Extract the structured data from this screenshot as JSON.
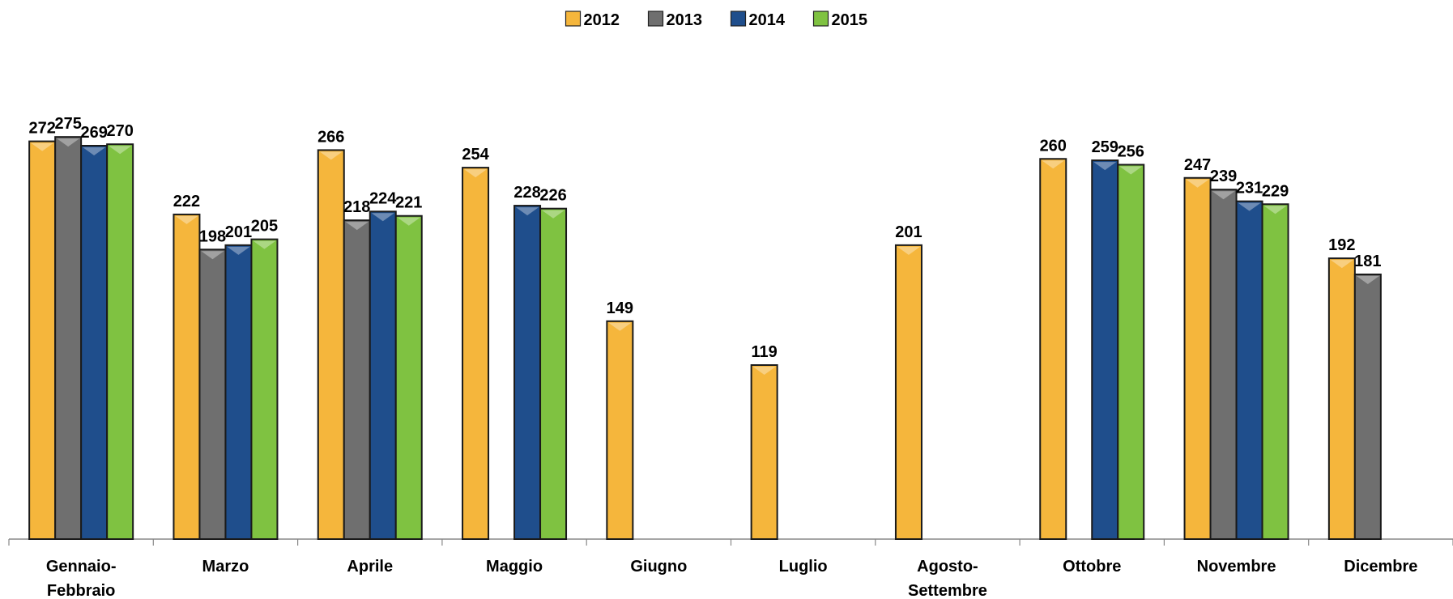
{
  "chart_data": {
    "type": "bar",
    "categories": [
      "Gennaio-Febbraio",
      "Marzo",
      "Aprile",
      "Maggio",
      "Giugno",
      "Luglio",
      "Agosto-Settembre",
      "Ottobre",
      "Novembre",
      "Dicembre"
    ],
    "series": [
      {
        "name": "2012",
        "color": "#f5b63c",
        "values": [
          272,
          222,
          266,
          254,
          149,
          119,
          201,
          260,
          247,
          192
        ]
      },
      {
        "name": "2013",
        "color": "#6f6f6f",
        "values": [
          275,
          198,
          218,
          null,
          null,
          null,
          null,
          null,
          239,
          181
        ]
      },
      {
        "name": "2014",
        "color": "#1f4e8c",
        "values": [
          269,
          201,
          224,
          228,
          null,
          null,
          null,
          259,
          231,
          null
        ]
      },
      {
        "name": "2015",
        "color": "#7fc241",
        "values": [
          270,
          205,
          221,
          226,
          null,
          null,
          null,
          256,
          229,
          null
        ]
      }
    ],
    "ylim": [
      0,
      300
    ],
    "legend": "top"
  }
}
